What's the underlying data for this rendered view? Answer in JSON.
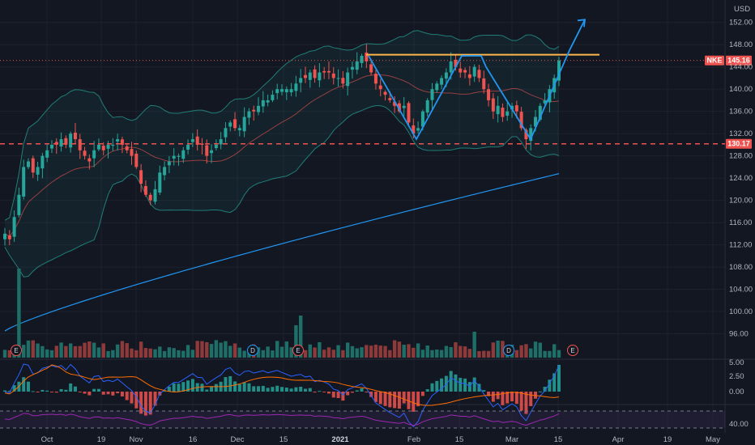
{
  "chart_data": {
    "type": "candlestick",
    "symbol": "NKE",
    "currency": "USD",
    "last_price": "145.16",
    "support_level": "130.17",
    "x_labels": [
      "Oct",
      "19",
      "Nov",
      "16",
      "Dec",
      "15",
      "2021",
      "Feb",
      "15",
      "Mar",
      "15",
      "Apr",
      "19",
      "May"
    ],
    "price_axis": {
      "ylim": [
        92,
        154
      ],
      "ticks": [
        "152.00",
        "148.00",
        "144.00",
        "140.00",
        "136.00",
        "132.00",
        "128.00",
        "124.00",
        "120.00",
        "116.00",
        "112.00",
        "108.00",
        "104.00",
        "100.00",
        "96.00"
      ]
    },
    "macd_axis": {
      "ticks": [
        "5.00",
        "2.50",
        "0.00"
      ]
    },
    "rsi_axis": {
      "ticks": [
        "40.00"
      ]
    },
    "events": {
      "earnings": [
        "E",
        "E",
        "E"
      ],
      "dividends": [
        "D",
        "D"
      ]
    },
    "candles_close_series": [
      114,
      113,
      117,
      121,
      126,
      127,
      125,
      126,
      128,
      129,
      130,
      130,
      131,
      130,
      132,
      131,
      129,
      128,
      127,
      129,
      130,
      129,
      130,
      130,
      131,
      130,
      129,
      128,
      126,
      123,
      121,
      120,
      122,
      125,
      126,
      127,
      128,
      128,
      129,
      130,
      131,
      130,
      130,
      128,
      129,
      130,
      131,
      133,
      134,
      133,
      133,
      135,
      136,
      136,
      137,
      138,
      138,
      139,
      140,
      140,
      140,
      140,
      141,
      142,
      142,
      143,
      142,
      143,
      143,
      143,
      142,
      142,
      141,
      143,
      144,
      145,
      146,
      145,
      143,
      141,
      140,
      139,
      138,
      137,
      136,
      137,
      134,
      132,
      133,
      136,
      138,
      140,
      141,
      142,
      143,
      145,
      144,
      143,
      143,
      142,
      144,
      142,
      140,
      138,
      136,
      137,
      135,
      136,
      137,
      136,
      133,
      131,
      133,
      135,
      137,
      138,
      140,
      142,
      145.16
    ],
    "indicators": {
      "bollinger_upper_color": "#26a69a",
      "ma200_color": "#2196f3",
      "ma20_color": "#ef5350",
      "macd_color": "#2962ff",
      "signal_color": "#ff6d00",
      "rsi_color": "#9c27b0",
      "resistance_color": "#ffb74d",
      "support_color": "#ef5350",
      "pattern_color": "#2196f3"
    }
  }
}
